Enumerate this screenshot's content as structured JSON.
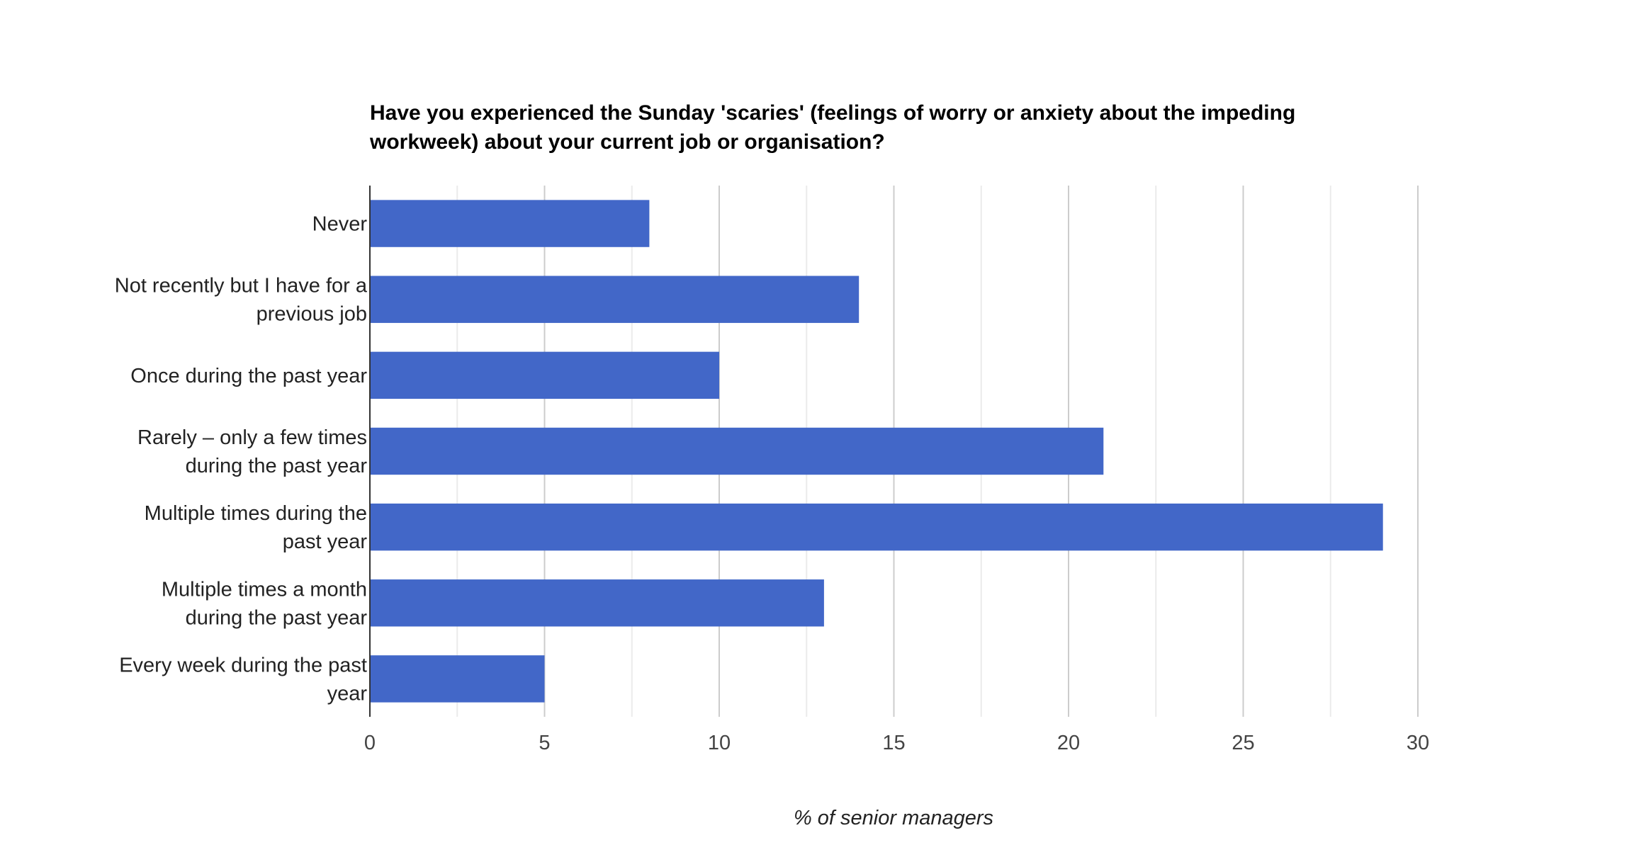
{
  "chart_data": {
    "type": "bar",
    "orientation": "horizontal",
    "title": "Have you experienced the Sunday 'scaries' (feelings of worry or anxiety about the impeding workweek) about your current job or organisation?",
    "title_lines": [
      "Have you experienced the Sunday 'scaries' (feelings of worry or anxiety about the impeding",
      "workweek) about your current job or organisation?"
    ],
    "categories": [
      [
        "Never"
      ],
      [
        "Not recently but I have for a",
        "previous job"
      ],
      [
        "Once during the past year"
      ],
      [
        "Rarely – only a few times",
        "during the past year"
      ],
      [
        "Multiple times during the",
        "past year"
      ],
      [
        "Multiple times a month",
        "during the past year"
      ],
      [
        "Every week during the past",
        "year"
      ]
    ],
    "values": [
      8,
      14,
      10,
      21,
      29,
      13,
      5
    ],
    "xlabel": "% of senior managers",
    "ylabel": "",
    "xlim": [
      0,
      30
    ],
    "x_ticks": [
      "0",
      "5",
      "10",
      "15",
      "20",
      "25",
      "30"
    ],
    "grid": true,
    "legend": "none",
    "bar_color": "#4267c8",
    "major_grid_color": "#cccccc",
    "minor_grid_color": "#ebebeb",
    "axis_color": "#333333"
  }
}
